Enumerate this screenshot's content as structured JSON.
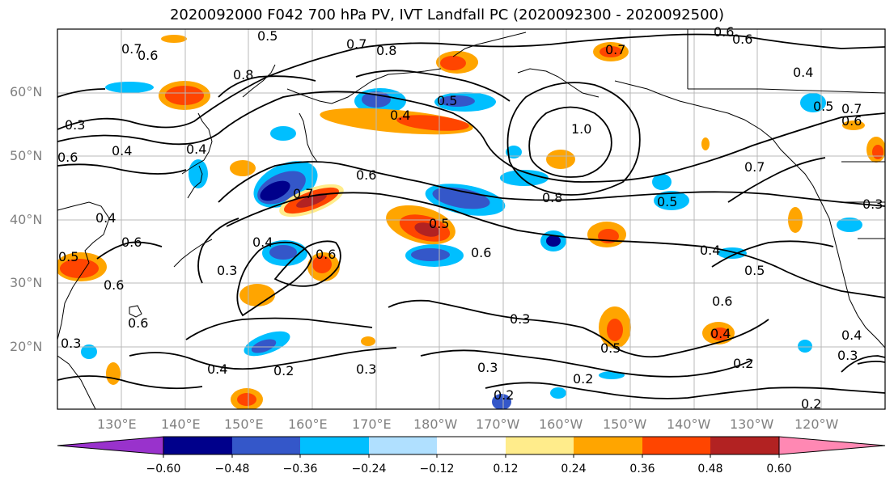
{
  "title": "2020092000 F042 700 hPa PV, IVT Landfall PC (2020092300 - 2020092500)",
  "map": {
    "lat_labels": [
      "60°N",
      "50°N",
      "40°N",
      "30°N",
      "20°N"
    ],
    "lon_labels": [
      "130°E",
      "140°E",
      "150°E",
      "160°E",
      "170°E",
      "180°W",
      "170°W",
      "160°W",
      "150°W",
      "140°W",
      "130°W",
      "120°W"
    ],
    "contour_labels": [
      "0.5",
      "0.7",
      "0.6",
      "0.7",
      "0.8",
      "0.6",
      "0.7",
      "0.4",
      "0.6",
      "0.7",
      "0.6",
      "0.8",
      "0.3",
      "0.4",
      "0.5",
      "0.4",
      "0.5",
      "1.0",
      "0.6",
      "0.4",
      "0.7",
      "0.6",
      "0.8",
      "0.5",
      "0.4",
      "0.6",
      "0.7",
      "0.5",
      "0.3",
      "0.6",
      "0.5",
      "0.6",
      "0.6",
      "0.4",
      "0.5",
      "0.4",
      "0.6",
      "0.4",
      "0.3",
      "0.6",
      "0.3",
      "0.5",
      "0.3",
      "0.4",
      "0.2",
      "0.2",
      "0.3",
      "0.4",
      "0.2",
      "0.3",
      "0.2",
      "0.3",
      "0.2"
    ]
  },
  "colorbar": {
    "colors": [
      "#9932cc",
      "#00008b",
      "#3457c9",
      "#00bfff",
      "#b0e0ff",
      "#ffffff",
      "#ffec8b",
      "#ffa500",
      "#ff4500",
      "#b22222",
      "#ff88b3"
    ],
    "ticks": [
      "−0.60",
      "−0.48",
      "−0.36",
      "−0.24",
      "−0.12",
      "0.12",
      "0.24",
      "0.36",
      "0.48",
      "0.60"
    ]
  }
}
